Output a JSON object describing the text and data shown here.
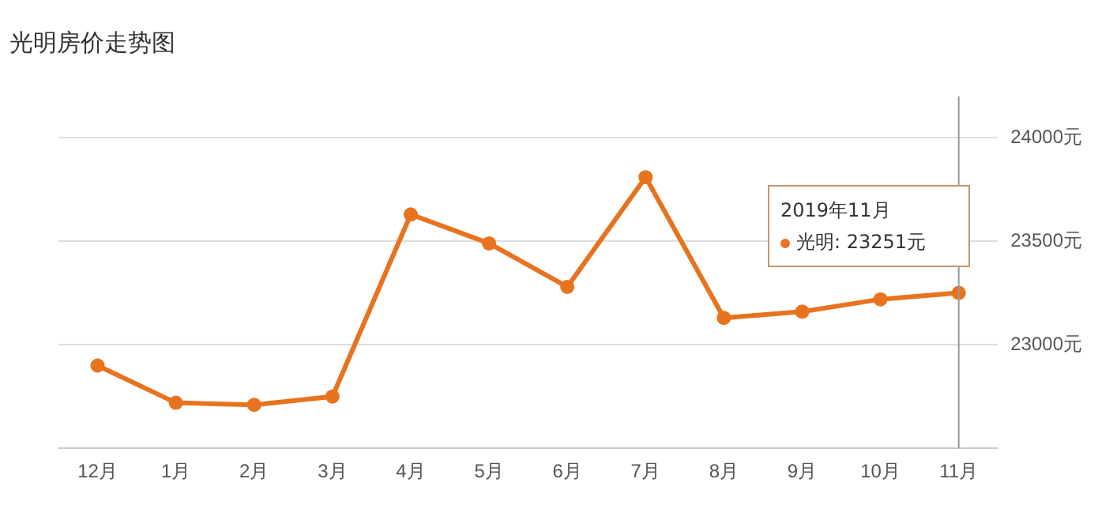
{
  "chart_data": {
    "type": "line",
    "title": "光明房价走势图",
    "categories": [
      "12月",
      "1月",
      "2月",
      "3月",
      "4月",
      "5月",
      "6月",
      "7月",
      "8月",
      "9月",
      "10月",
      "11月"
    ],
    "series": [
      {
        "color": "#e8731f",
        "values": [
          22900,
          22720,
          22710,
          22750,
          23630,
          23490,
          23280,
          23810,
          23130,
          23160,
          23220,
          23251
        ]
      }
    ],
    "ylim": [
      22500,
      24200
    ],
    "yticks": [
      {
        "value": 23000,
        "label": "23000元"
      },
      {
        "value": 23500,
        "label": "23500元"
      },
      {
        "value": 24000,
        "label": "24000元"
      }
    ],
    "grid": "y",
    "legend": false,
    "marker": "circle",
    "line_style": "solid",
    "ref_lines": [
      {
        "axis": "x",
        "value": "11月",
        "color": "#999999"
      }
    ],
    "annotations": [
      "2019年11月",
      "光明: 23251元"
    ]
  }
}
